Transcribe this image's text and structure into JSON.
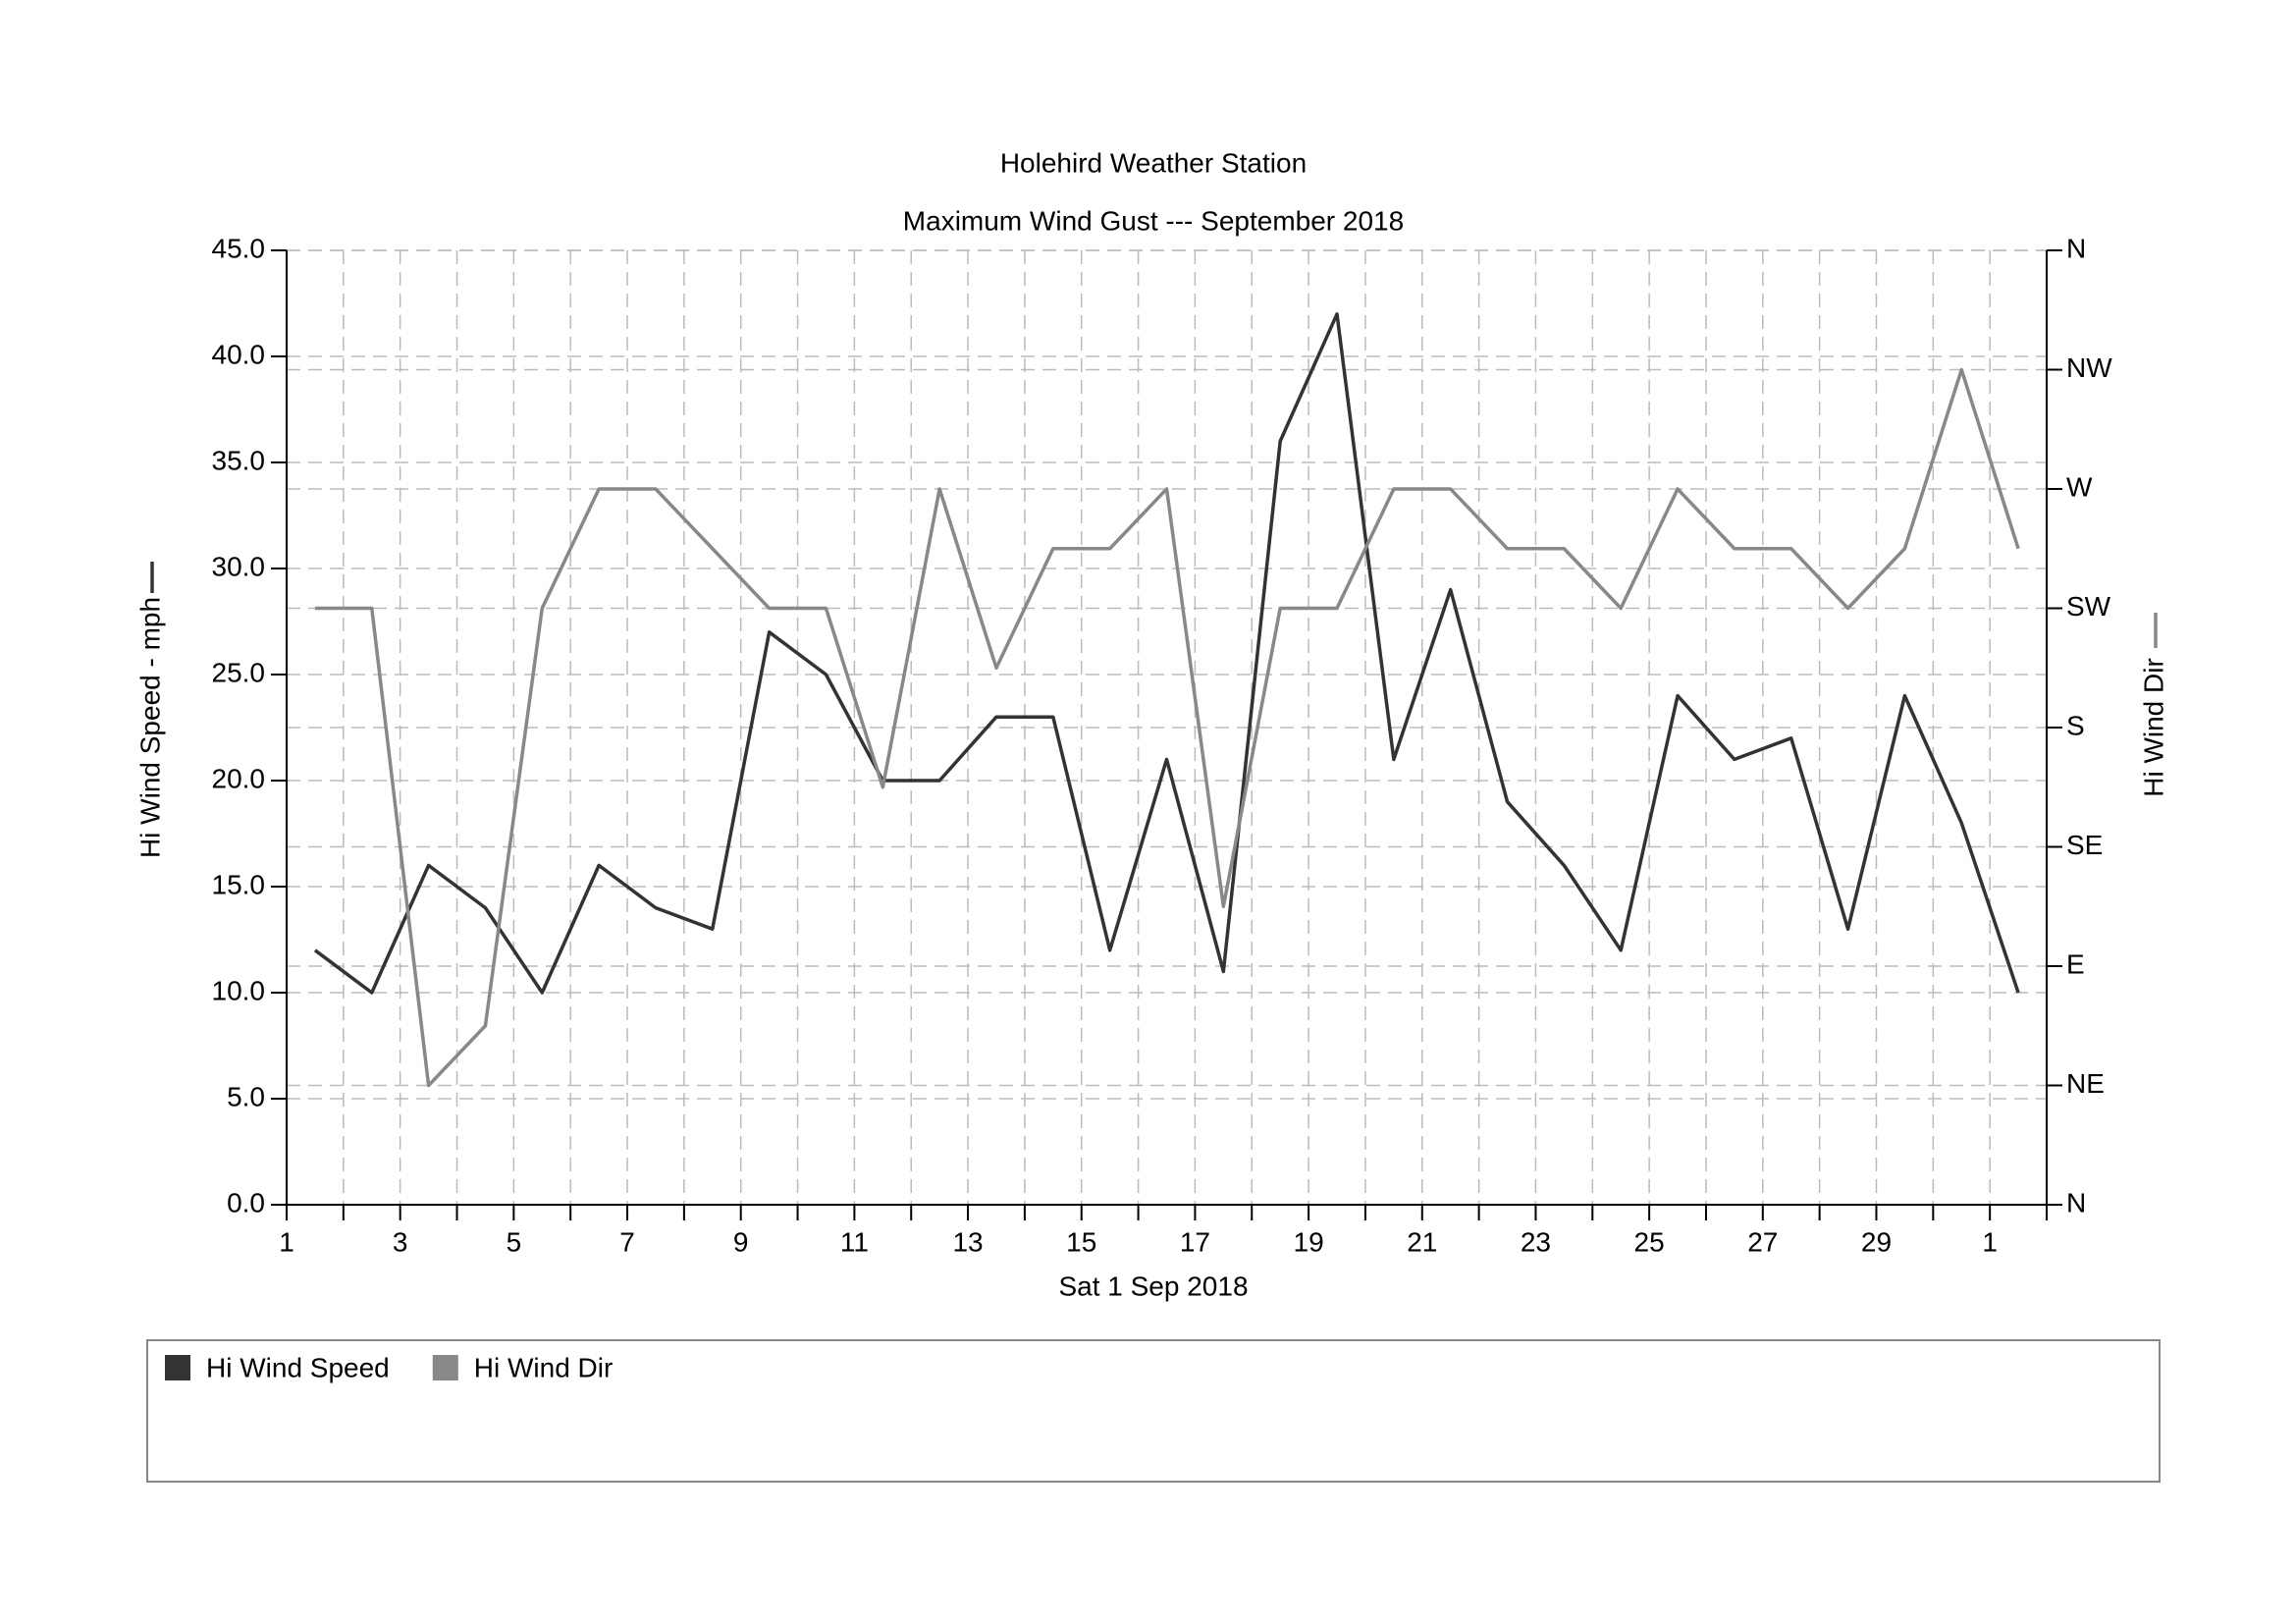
{
  "chart_data": {
    "type": "line",
    "title": "Holehird Weather Station",
    "subtitle": "Maximum Wind Gust --- September 2018",
    "x_label": "Sat 1 Sep 2018",
    "y_label": "Hi Wind Speed - mph",
    "y2_label": "Hi Wind Dir",
    "x": [
      1.5,
      2.5,
      3.5,
      4.5,
      5.5,
      6.5,
      7.5,
      8.5,
      9.5,
      10.5,
      11.5,
      12.5,
      13.5,
      14.5,
      15.5,
      16.5,
      17.5,
      18.5,
      19.5,
      20.5,
      21.5,
      22.5,
      23.5,
      24.5,
      25.5,
      26.5,
      27.5,
      28.5,
      29.5,
      30.5,
      31.5
    ],
    "series": [
      {
        "name": "Hi Wind Speed",
        "color": "#333333",
        "axis": "y",
        "values": [
          12,
          10,
          16,
          14,
          10,
          16,
          14,
          13,
          27,
          25,
          20,
          20,
          23,
          23,
          12,
          21,
          11,
          36,
          42,
          21,
          29,
          19,
          16,
          12,
          24,
          21,
          22,
          13,
          24,
          18,
          10
        ]
      },
      {
        "name": "Hi Wind Dir",
        "color": "#888888",
        "axis": "y2",
        "values": [
          225,
          225,
          45,
          67.5,
          225,
          270,
          270,
          247.5,
          225,
          225,
          157.5,
          270,
          202.5,
          247.5,
          247.5,
          270,
          112.5,
          225,
          225,
          270,
          270,
          247.5,
          247.5,
          225,
          270,
          247.5,
          247.5,
          225,
          247.5,
          315,
          247.5
        ]
      }
    ],
    "xlim": [
      1,
      32
    ],
    "xticks": [
      1,
      3,
      5,
      7,
      9,
      11,
      13,
      15,
      17,
      19,
      21,
      23,
      25,
      27,
      29,
      {
        "value": 31,
        "label": "1"
      }
    ],
    "xminor": [
      2,
      4,
      6,
      8,
      10,
      12,
      14,
      16,
      18,
      20,
      22,
      24,
      26,
      28,
      30,
      32
    ],
    "ylim": [
      0,
      45
    ],
    "yticks": [
      {
        "value": 0,
        "label": "0.0"
      },
      {
        "value": 5,
        "label": "5.0"
      },
      {
        "value": 10,
        "label": "10.0"
      },
      {
        "value": 15,
        "label": "15.0"
      },
      {
        "value": 20,
        "label": "20.0"
      },
      {
        "value": 25,
        "label": "25.0"
      },
      {
        "value": 30,
        "label": "30.0"
      },
      {
        "value": 35,
        "label": "35.0"
      },
      {
        "value": 40,
        "label": "40.0"
      },
      {
        "value": 45,
        "label": "45.0"
      }
    ],
    "y2lim": [
      0,
      360
    ],
    "y2ticks": [
      {
        "value": 0,
        "label": "N"
      },
      {
        "value": 45,
        "label": "NE"
      },
      {
        "value": 90,
        "label": "E"
      },
      {
        "value": 135,
        "label": "SE"
      },
      {
        "value": 180,
        "label": "S"
      },
      {
        "value": 225,
        "label": "SW"
      },
      {
        "value": 270,
        "label": "W"
      },
      {
        "value": 315,
        "label": "NW"
      },
      {
        "value": 360,
        "label": "N"
      }
    ],
    "grid": true
  }
}
